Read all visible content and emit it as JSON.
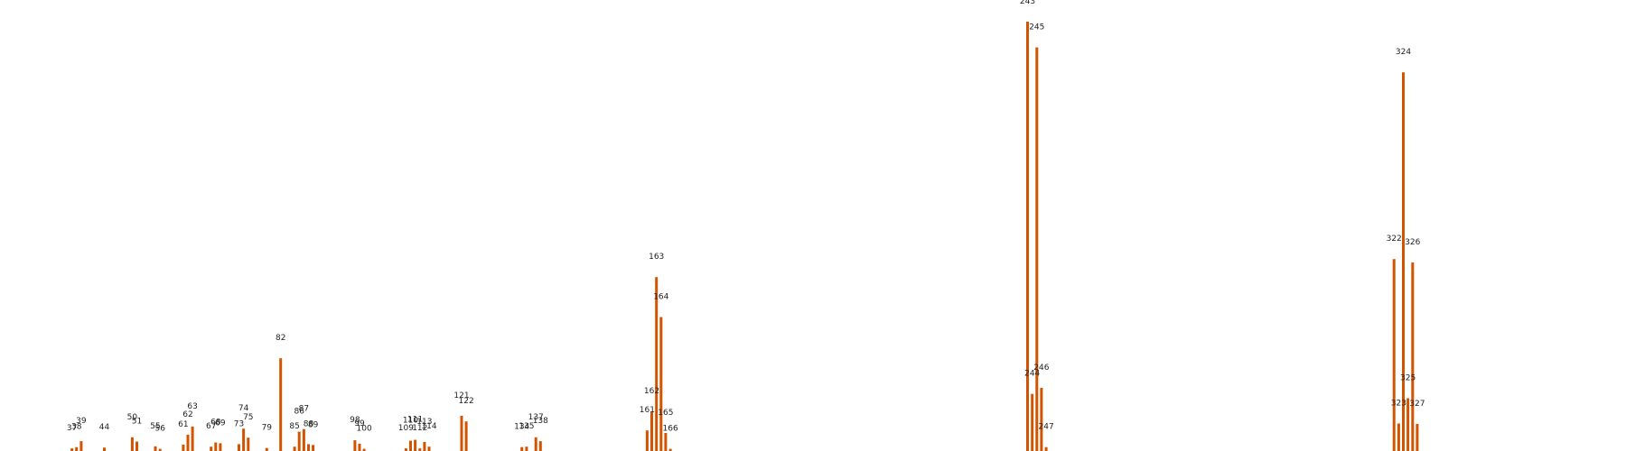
{
  "chart_data": {
    "type": "bar",
    "title": "",
    "xlabel": "",
    "ylabel": "",
    "bar_color": "#d35400",
    "grid": false,
    "legend": "none",
    "xlim": [
      21.5,
      372
    ],
    "ylim": [
      0,
      100
    ],
    "categories": [
      37,
      38,
      39,
      44,
      50,
      51,
      55,
      56,
      61,
      62,
      63,
      67,
      68,
      69,
      73,
      74,
      75,
      79,
      82,
      85,
      86,
      87,
      88,
      89,
      98,
      99,
      100,
      109,
      110,
      111,
      112,
      113,
      114,
      121,
      122,
      134,
      135,
      137,
      138,
      161,
      162,
      163,
      164,
      165,
      166,
      243,
      244,
      245,
      246,
      247,
      322,
      323,
      324,
      325,
      326,
      327
    ],
    "values": [
      0.6,
      0.9,
      2.3,
      0.8,
      3.2,
      2.2,
      1.1,
      0.5,
      1.5,
      3.8,
      5.7,
      1.0,
      2.0,
      1.8,
      1.6,
      5.2,
      3.1,
      0.7,
      21.6,
      1.0,
      4.5,
      5.1,
      1.6,
      1.4,
      2.5,
      1.7,
      0.5,
      0.6,
      2.4,
      2.6,
      0.6,
      2.1,
      1.0,
      8.2,
      6.9,
      0.9,
      1.0,
      3.2,
      2.3,
      4.8,
      9.2,
      40.5,
      31.2,
      4.2,
      0.5,
      100.0,
      13.3,
      94.0,
      14.7,
      0.9,
      44.7,
      6.4,
      88.2,
      12.3,
      43.9,
      6.3
    ],
    "data_labels": [
      "37",
      "38",
      "39",
      "44",
      "50",
      "51",
      "55",
      "56",
      "61",
      "62",
      "63",
      "67",
      "68",
      "69",
      "73",
      "74",
      "75",
      "79",
      "82",
      "85",
      "86",
      "87",
      "88",
      "89",
      "98",
      "99",
      "100",
      "109",
      "110",
      "111",
      "112",
      "113",
      "114",
      "121",
      "122",
      "134",
      "135",
      "137",
      "138",
      "161",
      "162",
      "163",
      "164",
      "165",
      "166",
      "243",
      "244",
      "245",
      "246",
      "247",
      "322",
      "323",
      "324",
      "325",
      "326",
      "327"
    ]
  }
}
